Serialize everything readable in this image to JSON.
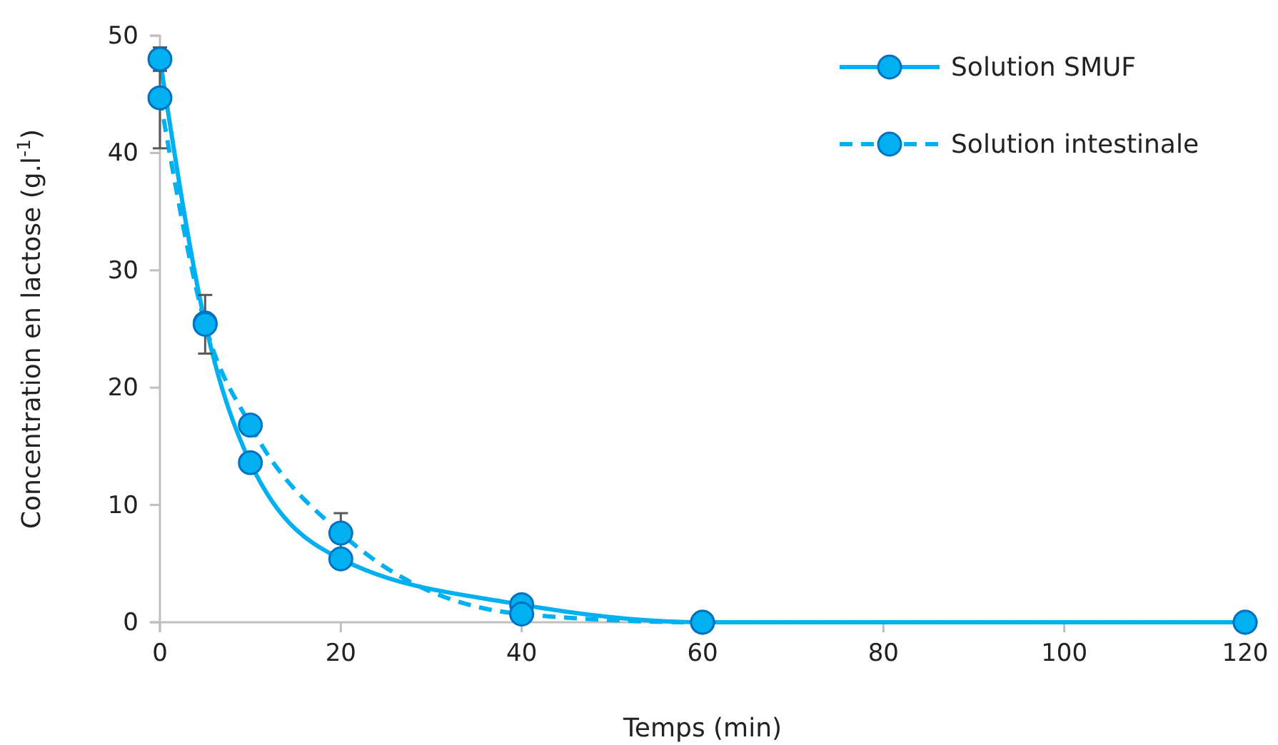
{
  "chart_data": {
    "type": "line",
    "xlabel": "Temps (min)",
    "ylabel": "Concentration en lactose (g.l$^{-1}$)",
    "x": [
      0,
      5,
      10,
      20,
      40,
      60,
      120
    ],
    "series": [
      {
        "name": "Solution SMUF",
        "color": "#00b0f0",
        "line_style": "solid",
        "values": [
          48.0,
          25.5,
          13.6,
          5.4,
          1.5,
          0,
          0
        ],
        "errors": [
          1.0,
          null,
          null,
          null,
          null,
          null,
          null
        ]
      },
      {
        "name": "Solution intestinale",
        "color": "#00b0f0",
        "line_style": "dashed",
        "values": [
          44.7,
          25.4,
          16.8,
          7.6,
          0.7,
          0,
          0
        ],
        "errors": [
          4.3,
          2.5,
          null,
          1.7,
          null,
          null,
          null
        ]
      }
    ],
    "xlim": [
      0,
      120
    ],
    "xticks": [
      0,
      20,
      40,
      60,
      80,
      100,
      120
    ],
    "ylim": [
      0,
      50
    ],
    "yticks": [
      0,
      10,
      20,
      30,
      40,
      50
    ],
    "marker": "circle",
    "grid": false,
    "legend": "top right"
  }
}
